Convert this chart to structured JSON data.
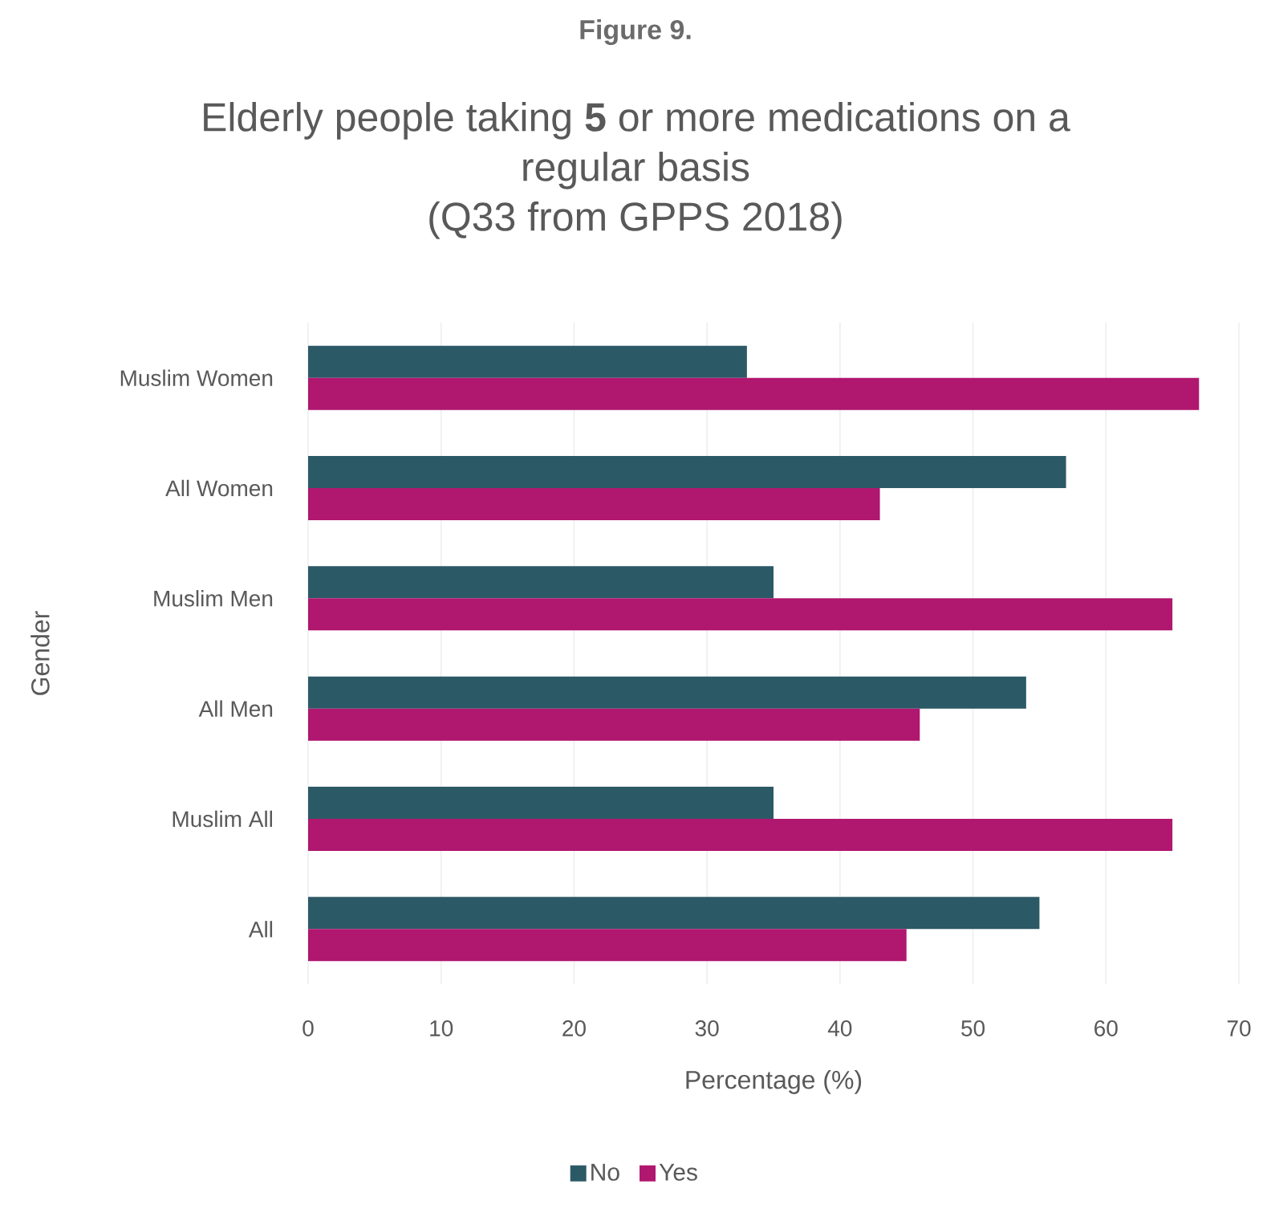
{
  "chart_data": {
    "type": "bar",
    "orientation": "horizontal",
    "title": "Elderly people taking **5** or more medications on a regular basis",
    "subtitle": "(Q33 from GPPS 2018)",
    "annotations": [
      "Figure 9."
    ],
    "xlabel": "Percentage (%)",
    "ylabel": "Gender",
    "categories": [
      "Muslim Women",
      "All Women",
      "Muslim Men",
      "All Men",
      "Muslim All",
      "All"
    ],
    "series": [
      {
        "name": "No",
        "color": "#2c5966",
        "values": [
          33,
          57,
          35,
          54,
          35,
          55
        ]
      },
      {
        "name": "Yes",
        "color": "#b0176f",
        "values": [
          67,
          43,
          65,
          46,
          65,
          45
        ]
      }
    ],
    "xlim": [
      0,
      70
    ],
    "xticks": [
      0,
      10,
      20,
      30,
      40,
      50,
      60,
      70
    ],
    "grid": "x",
    "legend": "bottom"
  }
}
